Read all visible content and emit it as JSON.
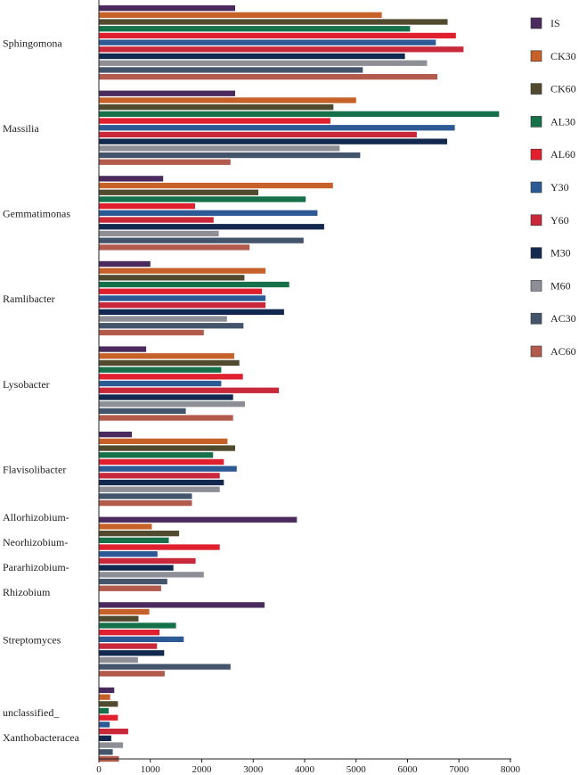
{
  "chart_data": {
    "type": "bar",
    "orientation": "horizontal",
    "title": "",
    "xlabel": "",
    "ylabel": "",
    "xlim": [
      0,
      8000
    ],
    "xticks": [
      0,
      1000,
      2000,
      3000,
      4000,
      5000,
      6000,
      7000,
      8000
    ],
    "grid": false,
    "legend_position": "right",
    "categories": [
      {
        "name": "Sphingomona",
        "label_lines": [
          "Sphingomona"
        ]
      },
      {
        "name": "Massilia",
        "label_lines": [
          "Massilia"
        ]
      },
      {
        "name": "Gemmatimonas",
        "label_lines": [
          "Gemmatimonas"
        ]
      },
      {
        "name": "Ramlibacter",
        "label_lines": [
          "Ramlibacter"
        ]
      },
      {
        "name": "Lysobacter",
        "label_lines": [
          "Lysobacter"
        ]
      },
      {
        "name": "Flavisolibacter",
        "label_lines": [
          "Flavisolibacter"
        ]
      },
      {
        "name": "Allorhizobium-Neorhizobium-Pararhizobium-Rhizobium",
        "label_lines": [
          "Allorhizobium-",
          "Neorhizobium-",
          "Pararhizobium-",
          "Rhizobium"
        ]
      },
      {
        "name": "Streptomyces",
        "label_lines": [
          "Streptomyces"
        ]
      },
      {
        "name": "unclassified_Xanthobacteracea",
        "label_lines": [
          "unclassified_",
          "Xanthobacteracea"
        ]
      }
    ],
    "series": [
      {
        "name": "IS",
        "color": "#4b2a5e",
        "values": [
          2650,
          2650,
          1250,
          1000,
          920,
          640,
          3850,
          3220,
          300
        ]
      },
      {
        "name": "CK30",
        "color": "#c6612a",
        "values": [
          5500,
          5000,
          4550,
          3240,
          2630,
          2500,
          1030,
          980,
          220
        ]
      },
      {
        "name": "CK60",
        "color": "#524a2e",
        "values": [
          6780,
          4560,
          3100,
          2830,
          2730,
          2650,
          1560,
          770,
          370
        ]
      },
      {
        "name": "AL30",
        "color": "#16704a",
        "values": [
          6050,
          7780,
          4020,
          3700,
          2380,
          2220,
          1360,
          1500,
          190
        ]
      },
      {
        "name": "AL60",
        "color": "#e0202e",
        "values": [
          6940,
          4500,
          1870,
          3170,
          2800,
          2430,
          2350,
          1180,
          370
        ]
      },
      {
        "name": "Y30",
        "color": "#2d5a94",
        "values": [
          6550,
          6920,
          4250,
          3240,
          2380,
          2680,
          1140,
          1650,
          210
        ]
      },
      {
        "name": "Y60",
        "color": "#c8283a",
        "values": [
          7090,
          6180,
          2230,
          3240,
          3500,
          2350,
          1880,
          1130,
          570
        ]
      },
      {
        "name": "M30",
        "color": "#12284e",
        "values": [
          5950,
          6770,
          4380,
          3600,
          2610,
          2430,
          1450,
          1270,
          240
        ]
      },
      {
        "name": "M60",
        "color": "#8e8e96",
        "values": [
          6380,
          4680,
          2330,
          2490,
          2840,
          2350,
          2040,
          760,
          470
        ]
      },
      {
        "name": "AC30",
        "color": "#44546a",
        "values": [
          5130,
          5080,
          3980,
          2810,
          1690,
          1810,
          1330,
          2560,
          270
        ]
      },
      {
        "name": "AC60",
        "color": "#b25a4c",
        "values": [
          6580,
          2560,
          2930,
          2040,
          2610,
          1810,
          1210,
          1280,
          390
        ]
      }
    ]
  }
}
